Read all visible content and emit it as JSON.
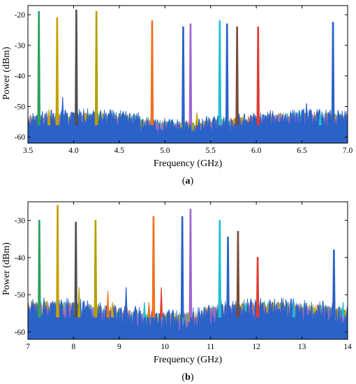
{
  "chart_data": [
    {
      "type": "line",
      "panel_label": "a",
      "xlabel": "Frequency (GHz)",
      "ylabel": "Power (dBm)",
      "xlim": [
        3.5,
        7.0
      ],
      "ylim": [
        -62,
        -17
      ],
      "xticks": [
        "3.5",
        "4.0",
        "4.5",
        "5.0",
        "5.5",
        "6.0",
        "6.5",
        "7.0"
      ],
      "xtick_values": [
        3.5,
        4.0,
        4.5,
        5.0,
        5.5,
        6.0,
        6.5,
        7.0
      ],
      "yticks": [
        "-20",
        "-30",
        "-40",
        "-50",
        "-60"
      ],
      "ytick_values": [
        -20,
        -30,
        -40,
        -50,
        -60
      ],
      "noise_floor_dBm": -56,
      "grid": false,
      "series": [
        {
          "color": "#2ca05a",
          "x": 3.62,
          "peak": -19
        },
        {
          "color": "#c8a000",
          "x": 3.82,
          "peak": -21
        },
        {
          "color": "#505050",
          "x": 4.03,
          "peak": -18.5
        },
        {
          "color": "#b4a000",
          "x": 4.25,
          "peak": -19
        },
        {
          "color": "#f07020",
          "x": 4.86,
          "peak": -22
        },
        {
          "color": "#2a62c8",
          "x": 5.2,
          "peak": -24
        },
        {
          "color": "#a066d0",
          "x": 5.28,
          "peak": -23
        },
        {
          "color": "#20c0d0",
          "x": 5.6,
          "peak": -22
        },
        {
          "color": "#2a62c8",
          "x": 5.68,
          "peak": -23
        },
        {
          "color": "#7a4a3a",
          "x": 5.79,
          "peak": -24
        },
        {
          "color": "#e03c32",
          "x": 6.02,
          "peak": -24
        },
        {
          "color": "#2a62c8",
          "x": 6.84,
          "peak": -22.5
        }
      ],
      "spurs": [
        {
          "color": "#2a62c8",
          "x": 3.88,
          "peak": -47
        },
        {
          "color": "#c8a000",
          "x": 3.73,
          "peak": -51
        },
        {
          "color": "#2a62c8",
          "x": 6.55,
          "peak": -49
        },
        {
          "color": "#20c0d0",
          "x": 6.7,
          "peak": -52
        },
        {
          "color": "#c8a000",
          "x": 5.35,
          "peak": -52
        }
      ]
    },
    {
      "type": "line",
      "panel_label": "b",
      "xlabel": "Frequency (GHz)",
      "ylabel": "Power (dBm)",
      "xlim": [
        7,
        14
      ],
      "ylim": [
        -62,
        -25
      ],
      "xticks": [
        "7",
        "8",
        "9",
        "10",
        "11",
        "12",
        "13",
        "14"
      ],
      "xtick_values": [
        7,
        8,
        9,
        10,
        11,
        12,
        13,
        14
      ],
      "yticks": [
        "-30",
        "-40",
        "-50",
        "-60"
      ],
      "ytick_values": [
        -30,
        -40,
        -50,
        -60
      ],
      "noise_floor_dBm": -56,
      "grid": false,
      "series": [
        {
          "color": "#2ca05a",
          "x": 7.25,
          "peak": -30
        },
        {
          "color": "#c8a000",
          "x": 7.65,
          "peak": -26
        },
        {
          "color": "#505050",
          "x": 8.05,
          "peak": -30.5
        },
        {
          "color": "#b4a000",
          "x": 8.48,
          "peak": -30
        },
        {
          "color": "#f07020",
          "x": 9.75,
          "peak": -29
        },
        {
          "color": "#2a62c8",
          "x": 10.38,
          "peak": -29
        },
        {
          "color": "#a066d0",
          "x": 10.56,
          "peak": -27
        },
        {
          "color": "#20c0d0",
          "x": 11.2,
          "peak": -30
        },
        {
          "color": "#2a62c8",
          "x": 11.38,
          "peak": -34.5
        },
        {
          "color": "#7a4a3a",
          "x": 11.6,
          "peak": -33
        },
        {
          "color": "#e03c32",
          "x": 12.03,
          "peak": -40
        },
        {
          "color": "#2a62c8",
          "x": 13.7,
          "peak": -38
        }
      ],
      "spurs": [
        {
          "color": "#b4a000",
          "x": 8.12,
          "peak": -48
        },
        {
          "color": "#f07020",
          "x": 8.75,
          "peak": -49
        },
        {
          "color": "#2a62c8",
          "x": 9.15,
          "peak": -48
        },
        {
          "color": "#e03c32",
          "x": 9.92,
          "peak": -48
        },
        {
          "color": "#c8a000",
          "x": 8.85,
          "peak": -52
        },
        {
          "color": "#20c0d0",
          "x": 9.55,
          "peak": -52
        },
        {
          "color": "#f07020",
          "x": 9.65,
          "peak": -52
        },
        {
          "color": "#20c0d0",
          "x": 12.82,
          "peak": -52
        },
        {
          "color": "#20c0d0",
          "x": 13.9,
          "peak": -52
        }
      ]
    }
  ],
  "noise_colors": [
    "#f07020",
    "#2ca05a",
    "#20c0d0",
    "#c8a000",
    "#a066d0",
    "#2a62c8"
  ]
}
